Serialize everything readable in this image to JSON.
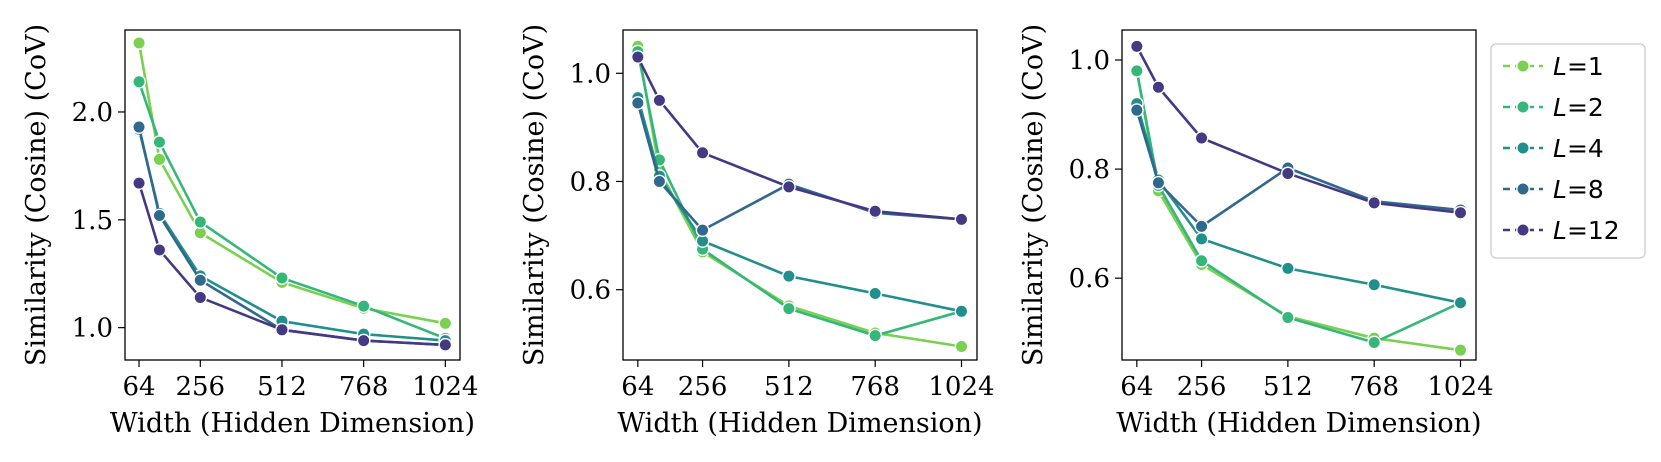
{
  "chart_data": [
    {
      "type": "line",
      "xlabel": "Width (Hidden Dimension)",
      "ylabel": "Similarity (Cosine) (CoV)",
      "x": [
        64,
        128,
        256,
        512,
        768,
        1024
      ],
      "xticks": [
        64,
        256,
        512,
        768,
        1024
      ],
      "xlim": [
        20,
        1070
      ],
      "yticks": [
        1.0,
        1.5,
        2.0
      ],
      "ylim": [
        0.85,
        2.38
      ],
      "series": [
        {
          "name": "L=1",
          "values": [
            2.32,
            1.78,
            1.44,
            1.21,
            1.09,
            1.02
          ]
        },
        {
          "name": "L=2",
          "values": [
            2.14,
            1.86,
            1.49,
            1.23,
            1.1,
            0.95
          ]
        },
        {
          "name": "L=4",
          "values": [
            1.92,
            1.53,
            1.24,
            1.03,
            0.97,
            0.94
          ]
        },
        {
          "name": "L=8",
          "values": [
            1.93,
            1.52,
            1.22,
            0.99,
            0.94,
            0.92
          ]
        },
        {
          "name": "L=12",
          "values": [
            1.67,
            1.36,
            1.14,
            0.99,
            0.94,
            0.92
          ]
        }
      ]
    },
    {
      "type": "line",
      "xlabel": "Width (Hidden Dimension)",
      "ylabel": "Similarity (Cosine) (CoV)",
      "x": [
        64,
        128,
        256,
        512,
        768,
        1024
      ],
      "xticks": [
        64,
        256,
        512,
        768,
        1024
      ],
      "xlim": [
        20,
        1070
      ],
      "yticks": [
        0.6,
        0.8,
        1.0
      ],
      "ylim": [
        0.47,
        1.08
      ],
      "series": [
        {
          "name": "L=1",
          "values": [
            1.05,
            0.82,
            0.67,
            0.57,
            0.52,
            0.495
          ]
        },
        {
          "name": "L=2",
          "values": [
            1.04,
            0.84,
            0.675,
            0.565,
            0.515,
            0.56
          ]
        },
        {
          "name": "L=4",
          "values": [
            0.955,
            0.81,
            0.69,
            0.625,
            0.593,
            0.56
          ]
        },
        {
          "name": "L=8",
          "values": [
            0.945,
            0.8,
            0.71,
            0.795,
            0.742,
            0.73
          ]
        },
        {
          "name": "L=12",
          "values": [
            1.03,
            0.95,
            0.853,
            0.79,
            0.745,
            0.73
          ]
        }
      ]
    },
    {
      "type": "line",
      "xlabel": "Width (Hidden Dimension)",
      "ylabel": "Similarity (Cosine) (CoV)",
      "x": [
        64,
        128,
        256,
        512,
        768,
        1024
      ],
      "xticks": [
        64,
        256,
        512,
        768,
        1024
      ],
      "xlim": [
        20,
        1070
      ],
      "yticks": [
        0.6,
        0.8,
        1.0
      ],
      "ylim": [
        0.45,
        1.055
      ],
      "series": [
        {
          "name": "L=1",
          "values": [
            0.98,
            0.76,
            0.625,
            0.53,
            0.49,
            0.468
          ]
        },
        {
          "name": "L=2",
          "values": [
            0.98,
            0.77,
            0.632,
            0.528,
            0.482,
            0.555
          ]
        },
        {
          "name": "L=4",
          "values": [
            0.92,
            0.78,
            0.672,
            0.618,
            0.588,
            0.555
          ]
        },
        {
          "name": "L=8",
          "values": [
            0.908,
            0.775,
            0.695,
            0.802,
            0.741,
            0.725
          ]
        },
        {
          "name": "L=12",
          "values": [
            1.025,
            0.95,
            0.857,
            0.792,
            0.738,
            0.72
          ]
        }
      ]
    }
  ],
  "legend": {
    "position": "right",
    "entries": [
      {
        "prefix": "L",
        "suffix": "=1"
      },
      {
        "prefix": "L",
        "suffix": "=2"
      },
      {
        "prefix": "L",
        "suffix": "=4"
      },
      {
        "prefix": "L",
        "suffix": "=8"
      },
      {
        "prefix": "L",
        "suffix": "=12"
      }
    ]
  },
  "colors": {
    "L=1": "#7ad151",
    "L=2": "#35b779",
    "L=4": "#21908d",
    "L=8": "#31688e",
    "L=12": "#443983",
    "axes": "#000000",
    "marker_edge": "#ffffff",
    "legend_border": "#cccccc"
  }
}
